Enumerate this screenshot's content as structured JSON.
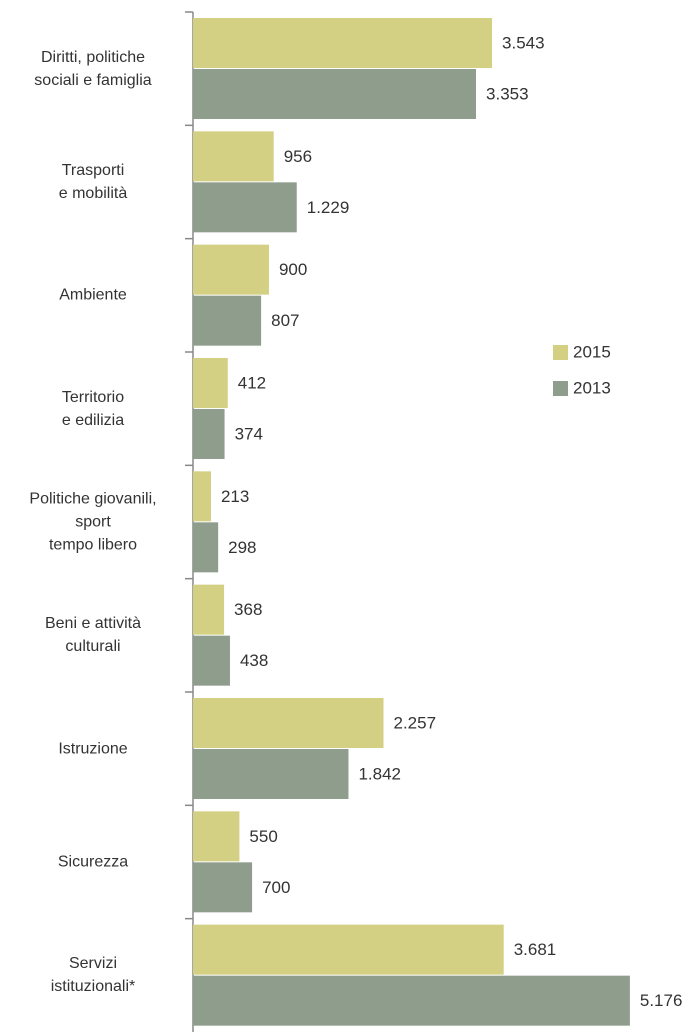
{
  "chart_data": {
    "type": "hbar",
    "categories": [
      "Diritti, politiche\nsociali e famiglia",
      "Trasporti\ne mobilità",
      "Ambiente",
      "Territorio\ne edilizia",
      "Politiche giovanili,\nsport\ntempo libero",
      "Beni e attività\nculturali",
      "Istruzione",
      "Sicurezza",
      "Servizi\nistituzionali*"
    ],
    "series": [
      {
        "name": "2015",
        "color": "#d4d083",
        "values": [
          3543,
          956,
          900,
          412,
          213,
          368,
          2257,
          550,
          3681
        ],
        "value_labels": [
          "3.543",
          "956",
          "900",
          "412",
          "213",
          "368",
          "2.257",
          "550",
          "3.681"
        ]
      },
      {
        "name": "2013",
        "color": "#8e9d8c",
        "values": [
          3353,
          1229,
          807,
          374,
          298,
          438,
          1842,
          700,
          5176
        ],
        "value_labels": [
          "3.353",
          "1.229",
          "807",
          "374",
          "298",
          "438",
          "1.842",
          "700",
          "5.176"
        ]
      }
    ],
    "xlim": [
      0,
      5900
    ],
    "legend": "right"
  }
}
